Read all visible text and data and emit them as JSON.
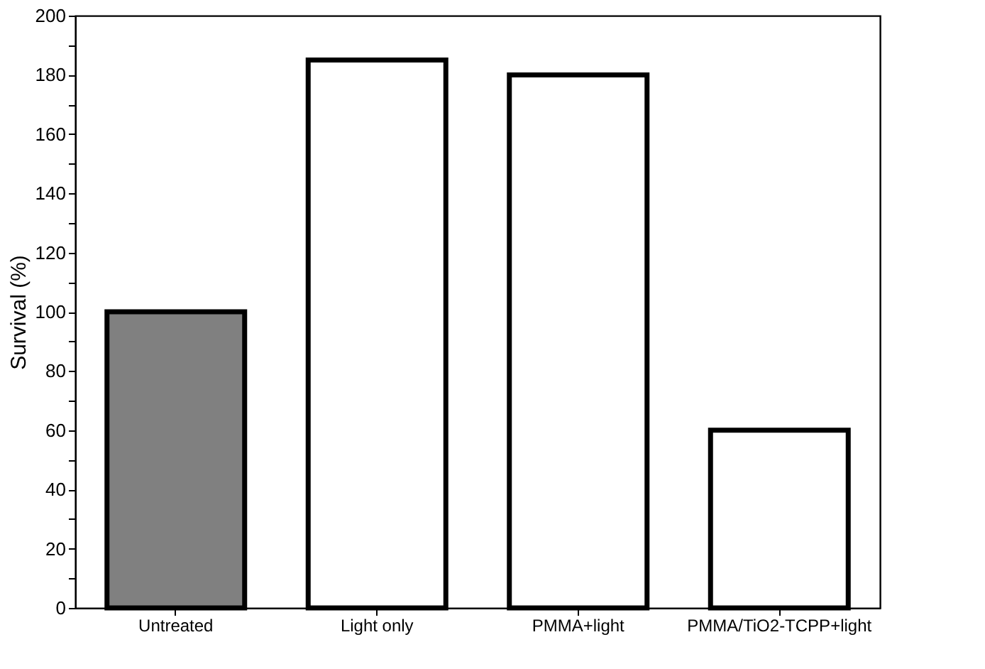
{
  "chart_data": {
    "type": "bar",
    "ylabel": "Survival (%)",
    "categories": [
      "Untreated",
      "Light only",
      "PMMA+light",
      "PMMA/TiO2-TCPP+light"
    ],
    "values": [
      100,
      185,
      180,
      60
    ],
    "colors": [
      "#808080",
      "#ffffff",
      "#ffffff",
      "#ffffff"
    ],
    "ylim": [
      0,
      200
    ],
    "yticks": [
      0,
      {
        "value": 10,
        "label": null
      },
      20,
      {
        "value": 30,
        "label": null
      },
      40,
      {
        "value": 50,
        "label": null
      },
      60,
      {
        "value": 70,
        "label": null
      },
      80,
      {
        "value": 90,
        "label": null
      },
      100,
      {
        "value": 110,
        "label": null
      },
      120,
      {
        "value": 130,
        "label": null
      },
      140,
      {
        "value": 150,
        "label": null
      },
      160,
      {
        "value": 170,
        "label": null
      },
      180,
      {
        "value": 190,
        "label": null
      },
      200
    ],
    "grid": false
  }
}
